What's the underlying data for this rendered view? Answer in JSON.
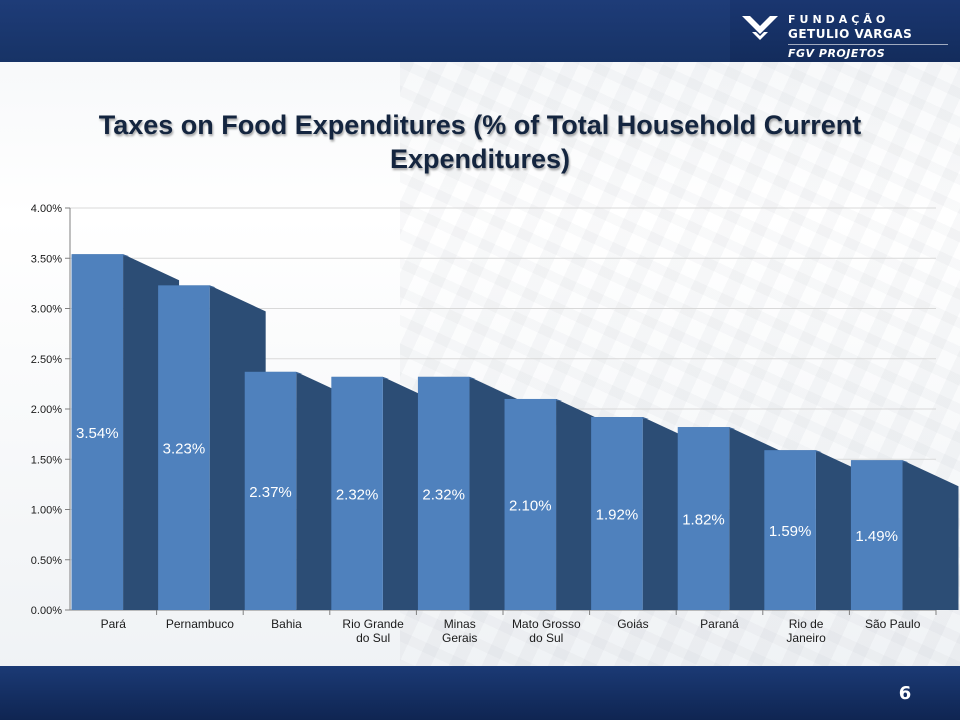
{
  "header": {
    "logo": {
      "line1": "FUNDAÇÃO",
      "line2": "GETULIO VARGAS",
      "line3": "FGV PROJETOS"
    }
  },
  "slide": {
    "title": "Taxes on Food Expenditures (% of Total Household Current Expenditures)",
    "page_number": "6"
  },
  "colors": {
    "bar_front": "#4f81bd",
    "bar_side": "#2c4d75",
    "bar_top": "#3a6396",
    "header_bg": "#1e3c78"
  },
  "chart_data": {
    "type": "bar",
    "title": "Taxes on Food Expenditures (% of Total Household Current Expenditures)",
    "xlabel": "",
    "ylabel": "",
    "ylim": [
      0,
      4
    ],
    "y_ticks": [
      "0.00%",
      "0.50%",
      "1.00%",
      "1.50%",
      "2.00%",
      "2.50%",
      "3.00%",
      "3.50%",
      "4.00%"
    ],
    "grid": true,
    "legend": "none",
    "categories": [
      [
        "Pará"
      ],
      [
        "Pernambuco"
      ],
      [
        "Bahia"
      ],
      [
        "Rio Grande",
        "do Sul"
      ],
      [
        "Minas",
        "Gerais"
      ],
      [
        "Mato Grosso",
        "do Sul"
      ],
      [
        "Goiás"
      ],
      [
        "Paraná"
      ],
      [
        "Rio de",
        "Janeiro"
      ],
      [
        "São Paulo"
      ]
    ],
    "values": [
      3.54,
      3.23,
      2.37,
      2.32,
      2.32,
      2.1,
      1.92,
      1.82,
      1.59,
      1.49
    ],
    "labels": [
      "3.54%",
      "3.23%",
      "2.37%",
      "2.32%",
      "2.32%",
      "2.10%",
      "1.92%",
      "1.82%",
      "1.59%",
      "1.49%"
    ]
  }
}
